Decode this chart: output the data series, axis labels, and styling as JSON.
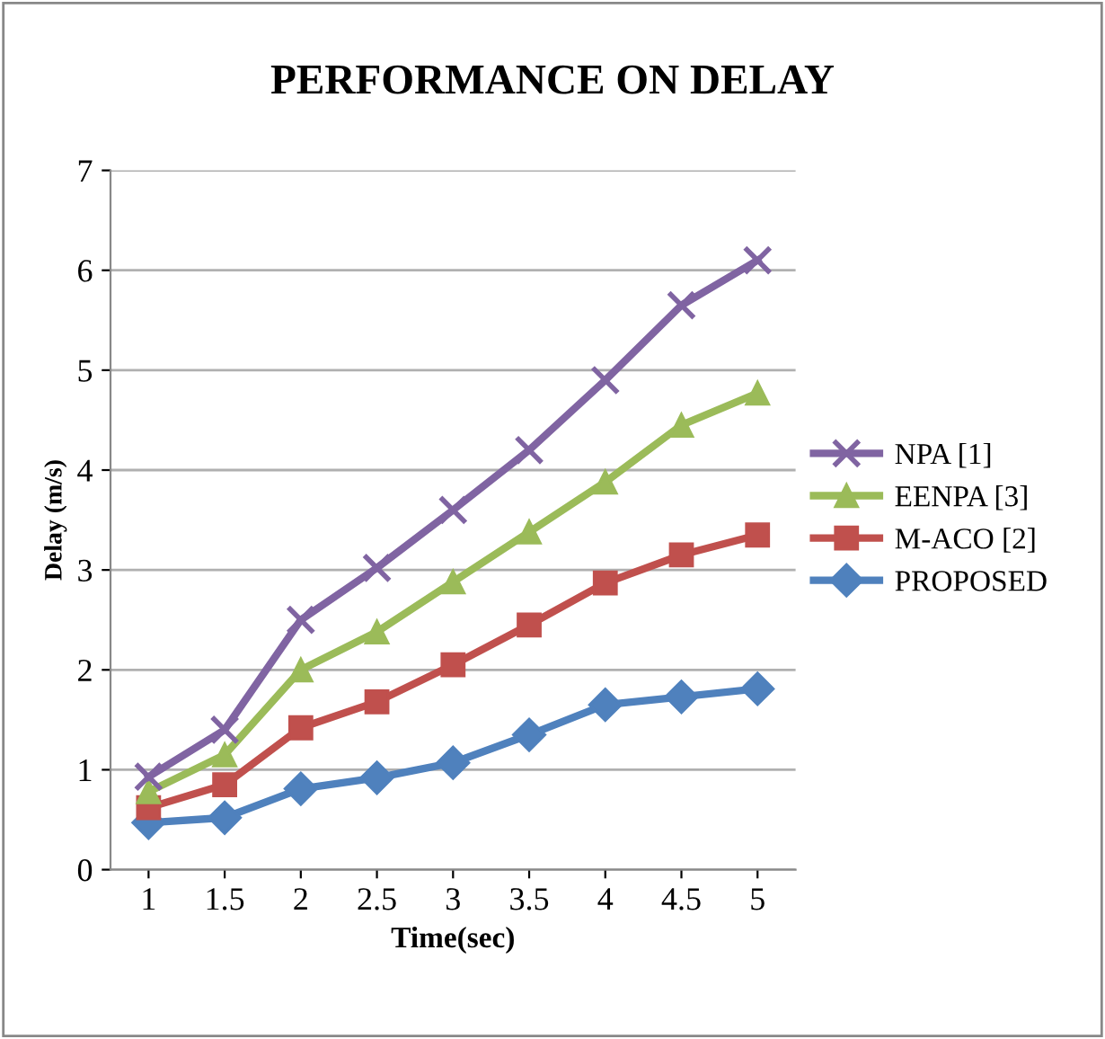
{
  "chart_data": {
    "type": "line",
    "title": "PERFORMANCE ON DELAY",
    "xlabel": "Time(sec)",
    "ylabel": "Delay (m/s)",
    "categories": [
      "1",
      "1.5",
      "2",
      "2.5",
      "3",
      "3.5",
      "4",
      "4.5",
      "5"
    ],
    "series": [
      {
        "name": "NPA [1]",
        "color": "#8064a2",
        "marker": "cross",
        "values": [
          0.93,
          1.4,
          2.5,
          3.02,
          3.6,
          4.2,
          4.9,
          5.65,
          6.1
        ]
      },
      {
        "name": "EENPA [3]",
        "color": "#9bbb59",
        "marker": "triangle",
        "values": [
          0.78,
          1.15,
          2.0,
          2.38,
          2.88,
          3.38,
          3.88,
          4.45,
          4.77
        ]
      },
      {
        "name": "M-ACO [2]",
        "color": "#c0504d",
        "marker": "square",
        "values": [
          0.62,
          0.85,
          1.42,
          1.68,
          2.05,
          2.45,
          2.87,
          3.15,
          3.35
        ]
      },
      {
        "name": "PROPOSED",
        "color": "#4f81bd",
        "marker": "diamond",
        "values": [
          0.47,
          0.52,
          0.81,
          0.92,
          1.07,
          1.35,
          1.65,
          1.73,
          1.81
        ]
      }
    ],
    "ylim": [
      0,
      7
    ],
    "yticks": [
      0,
      1,
      2,
      3,
      4,
      5,
      6,
      7
    ],
    "grid": "y",
    "legend": "right"
  }
}
